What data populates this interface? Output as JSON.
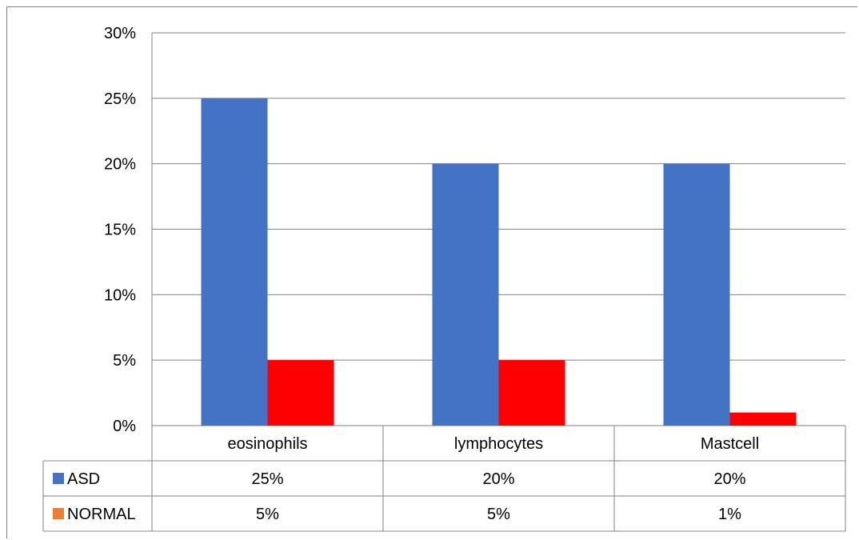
{
  "chart_data": {
    "type": "bar",
    "categories": [
      "eosinophils",
      "lymphocytes",
      "Mastcell"
    ],
    "series": [
      {
        "name": "ASD",
        "values": [
          25,
          20,
          20
        ],
        "labels": [
          "25%",
          "20%",
          "20%"
        ],
        "color": "#4472C4",
        "legend_color": "#4472C4"
      },
      {
        "name": "NORMAL",
        "values": [
          5,
          5,
          1
        ],
        "labels": [
          "5%",
          "5%",
          "1%"
        ],
        "color": "#FF0000",
        "legend_color": "#ED7D31"
      }
    ],
    "ylim": [
      0,
      30
    ],
    "yticks": [
      0,
      5,
      10,
      15,
      20,
      25,
      30
    ],
    "ytick_labels": [
      "0%",
      "5%",
      "10%",
      "15%",
      "20%",
      "25%",
      "30%"
    ],
    "title": "",
    "xlabel": "",
    "ylabel": "",
    "grid": true,
    "legend": "data table",
    "gridline_color": "#808080"
  }
}
